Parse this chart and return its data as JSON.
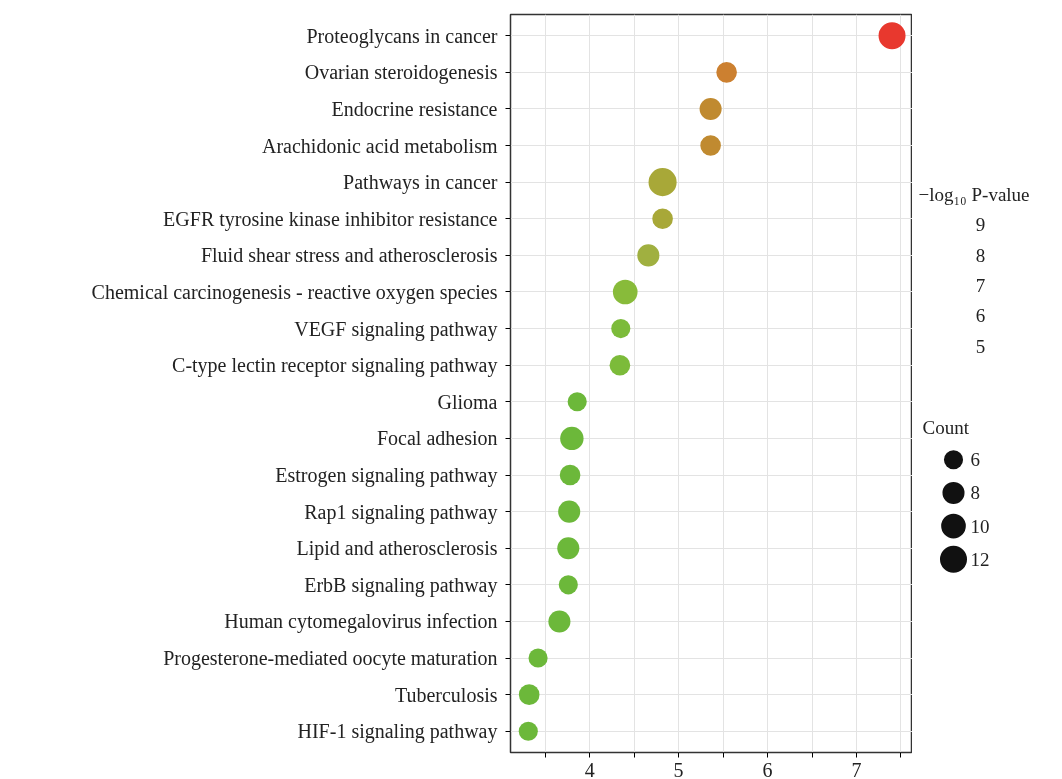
{
  "chart_data": {
    "type": "bubble",
    "categories": [
      "Proteoglycans in cancer",
      "Ovarian steroidogenesis",
      "Endocrine resistance",
      "Arachidonic acid metabolism",
      "Pathways in cancer",
      "EGFR tyrosine kinase inhibitor resistance",
      "Fluid shear stress and atherosclerosis",
      "Chemical carcinogenesis - reactive oxygen species",
      "VEGF signaling pathway",
      "C-type lectin receptor signaling pathway",
      "Glioma",
      "Focal adhesion",
      "Estrogen signaling pathway",
      "Rap1 signaling pathway",
      "Lipid and atherosclerosis",
      "ErbB signaling pathway",
      "Human cytomegalovirus infection",
      "Progesterone-mediated oocyte maturation",
      "Tuberculosis",
      "HIF-1 signaling pathway"
    ],
    "orientation": "horizontal",
    "values": [
      7.4,
      5.54,
      5.36,
      5.36,
      4.82,
      4.82,
      4.66,
      4.4,
      4.35,
      4.34,
      3.86,
      3.8,
      3.78,
      3.77,
      3.76,
      3.76,
      3.66,
      3.42,
      3.32,
      3.31
    ],
    "sizes": [
      12,
      7,
      8,
      7,
      13,
      7,
      8,
      10,
      6,
      7,
      6,
      9,
      7,
      8,
      8,
      6,
      8,
      6,
      7,
      6
    ],
    "colors": [
      "#e8382e",
      "#cc8030",
      "#c08a30",
      "#c08a30",
      "#a8a838",
      "#a8a838",
      "#a0b040",
      "#88bb3a",
      "#7cbb3a",
      "#7cbb3a",
      "#6cb83a",
      "#6cb83a",
      "#6cb83a",
      "#6cb83a",
      "#6cb83a",
      "#6cb83a",
      "#6cb83a",
      "#6cb83a",
      "#6cb83a",
      "#6cb83a"
    ],
    "size_legend": [
      6,
      8,
      10,
      12
    ],
    "legend_title": "Count",
    "clabel": "−log₁₀ P-value",
    "annotations": [
      "9",
      "8",
      "7",
      "6",
      "5"
    ],
    "xlim": [
      3.11,
      7.63
    ],
    "xticks": [
      {
        "value": 3.5,
        "label": null
      },
      4,
      {
        "value": 4.5,
        "label": null
      },
      5,
      {
        "value": 5.5,
        "label": null
      },
      6,
      {
        "value": 6.5,
        "label": null
      },
      7,
      {
        "value": 7.5,
        "label": null
      }
    ],
    "grid": true
  }
}
